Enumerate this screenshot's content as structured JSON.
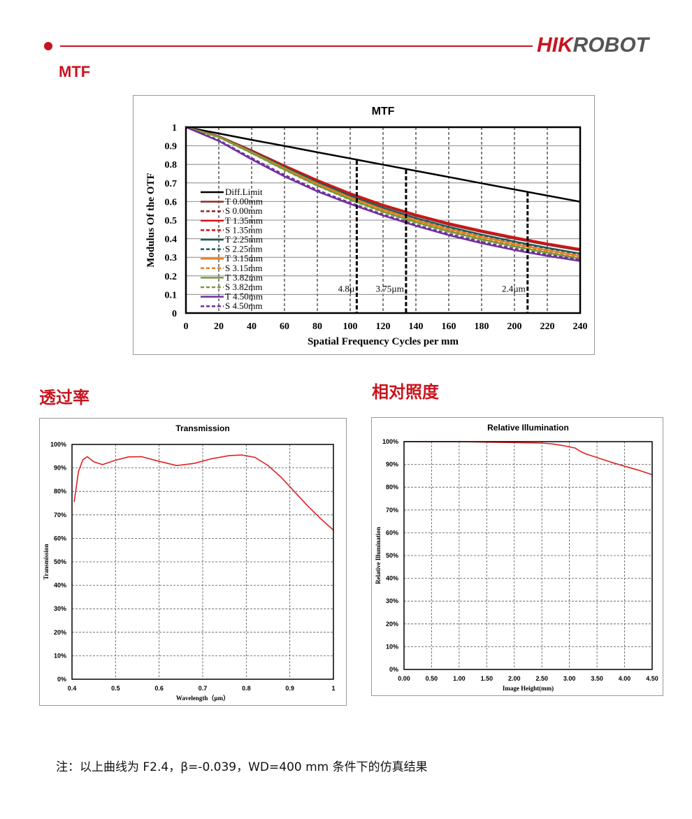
{
  "header": {
    "logo_part1": "HIK",
    "logo_part2": "ROBOT",
    "accent_color": "#c8141e"
  },
  "sections": {
    "mtf": "MTF",
    "transmission": "透过率",
    "illumination": "相对照度"
  },
  "footnote": "注：以上曲线为 F2.4，β=-0.039，WD=400 mm 条件下的仿真结果",
  "chart_data": [
    {
      "type": "line",
      "title": "MTF",
      "xlabel": "Spatial Frequency Cycles per mm",
      "ylabel": "Modulus Of  the OTF",
      "xlim": [
        0,
        240
      ],
      "ylim": [
        0,
        1
      ],
      "xticks": [
        "0",
        "20",
        "40",
        "60",
        "80",
        "100",
        "120",
        "140",
        "160",
        "180",
        "200",
        "220",
        "240"
      ],
      "yticks": [
        "0",
        "0.1",
        "0.2",
        "0.3",
        "0.4",
        "0.5",
        "0.6",
        "0.7",
        "0.8",
        "0.9",
        "1"
      ],
      "legend_position": "left",
      "grid": true,
      "x": [
        0,
        20,
        40,
        60,
        80,
        100,
        120,
        140,
        160,
        180,
        200,
        220,
        240
      ],
      "series": [
        {
          "name": "Diff.Limit",
          "color": "#000000",
          "dash": false,
          "values": [
            1,
            0.966,
            0.932,
            0.899,
            0.865,
            0.832,
            0.798,
            0.765,
            0.732,
            0.698,
            0.665,
            0.632,
            0.599
          ]
        },
        {
          "name": "T 0.00mm",
          "color": "#8b2b2b",
          "dash": false,
          "values": [
            1,
            0.951,
            0.873,
            0.79,
            0.711,
            0.64,
            0.577,
            0.522,
            0.476,
            0.436,
            0.4,
            0.367,
            0.337
          ]
        },
        {
          "name": "S 0.00mm",
          "color": "#8b2b2b",
          "dash": true,
          "values": [
            1,
            0.952,
            0.875,
            0.792,
            0.713,
            0.642,
            0.58,
            0.525,
            0.479,
            0.439,
            0.403,
            0.37,
            0.34
          ]
        },
        {
          "name": "T 1.35mm",
          "color": "#d41414",
          "dash": false,
          "values": [
            1,
            0.952,
            0.876,
            0.794,
            0.716,
            0.645,
            0.583,
            0.53,
            0.484,
            0.444,
            0.408,
            0.375,
            0.345
          ]
        },
        {
          "name": "S 1.35mm",
          "color": "#d41414",
          "dash": true,
          "values": [
            1,
            0.951,
            0.874,
            0.792,
            0.714,
            0.643,
            0.581,
            0.527,
            0.481,
            0.441,
            0.405,
            0.372,
            0.342
          ]
        },
        {
          "name": "T 2.25mm",
          "color": "#1f5b5b",
          "dash": false,
          "values": [
            1,
            0.95,
            0.871,
            0.786,
            0.704,
            0.631,
            0.567,
            0.511,
            0.464,
            0.422,
            0.385,
            0.351,
            0.32
          ]
        },
        {
          "name": "S 2.25mm",
          "color": "#1f5b5b",
          "dash": true,
          "values": [
            1,
            0.95,
            0.869,
            0.784,
            0.702,
            0.629,
            0.564,
            0.508,
            0.461,
            0.419,
            0.382,
            0.348,
            0.317
          ]
        },
        {
          "name": "T 3.15mm",
          "color": "#ee7d22",
          "dash": false,
          "values": [
            1,
            0.949,
            0.866,
            0.779,
            0.696,
            0.622,
            0.557,
            0.5,
            0.452,
            0.41,
            0.372,
            0.338,
            0.307
          ]
        },
        {
          "name": "S 3.15mm",
          "color": "#ee7d22",
          "dash": true,
          "values": [
            1,
            0.948,
            0.864,
            0.776,
            0.693,
            0.618,
            0.553,
            0.496,
            0.447,
            0.405,
            0.367,
            0.333,
            0.302
          ]
        },
        {
          "name": "T 3.82mm",
          "color": "#7a9a3a",
          "dash": false,
          "values": [
            1,
            0.947,
            0.862,
            0.772,
            0.687,
            0.612,
            0.546,
            0.489,
            0.44,
            0.397,
            0.359,
            0.325,
            0.294
          ]
        },
        {
          "name": "S 3.82mm",
          "color": "#7a9a3a",
          "dash": true,
          "values": [
            1,
            0.946,
            0.86,
            0.77,
            0.685,
            0.609,
            0.543,
            0.486,
            0.437,
            0.394,
            0.356,
            0.322,
            0.291
          ]
        },
        {
          "name": "T 4.50mm",
          "color": "#7030a0",
          "dash": false,
          "values": [
            1,
            0.926,
            0.827,
            0.735,
            0.655,
            0.587,
            0.525,
            0.469,
            0.419,
            0.376,
            0.339,
            0.307,
            0.28
          ]
        },
        {
          "name": "S 4.50mm",
          "color": "#7030a0",
          "dash": true,
          "values": [
            1,
            0.93,
            0.834,
            0.743,
            0.662,
            0.593,
            0.531,
            0.475,
            0.426,
            0.383,
            0.346,
            0.314,
            0.287
          ]
        }
      ],
      "annotations": [
        {
          "text": "4.8µ",
          "x": 104
        },
        {
          "text": "3.75µm",
          "x": 134
        },
        {
          "text": "2.4µm",
          "x": 208
        }
      ]
    },
    {
      "type": "line",
      "title": "Transmission",
      "xlabel": "Wavelength（µm）",
      "ylabel": "Transmission",
      "xlim": [
        0.4,
        1
      ],
      "ylim": [
        0,
        100
      ],
      "xticks": [
        "0.4",
        "0.5",
        "0.6",
        "0.7",
        "0.8",
        "0.9",
        "1"
      ],
      "yticks": [
        "0%",
        "10%",
        "20%",
        "30%",
        "40%",
        "50%",
        "60%",
        "70%",
        "80%",
        "90%",
        "100%"
      ],
      "grid": true,
      "x": [
        0.405,
        0.415,
        0.425,
        0.435,
        0.45,
        0.47,
        0.5,
        0.53,
        0.56,
        0.6,
        0.64,
        0.68,
        0.72,
        0.76,
        0.79,
        0.82,
        0.85,
        0.88,
        0.91,
        0.94,
        0.97,
        1.0
      ],
      "series": [
        {
          "name": "Transmission",
          "color": "#e02020",
          "values": [
            75.5,
            88.5,
            93.5,
            94.8,
            92.6,
            91.4,
            93.3,
            94.7,
            94.8,
            92.8,
            91.0,
            91.9,
            93.9,
            95.2,
            95.5,
            94.5,
            91.0,
            86.0,
            80.0,
            74.0,
            68.5,
            63.5
          ]
        }
      ]
    },
    {
      "type": "line",
      "title": "Relative Illumination",
      "xlabel": "Image Height(mm)",
      "ylabel": "Relative Illumination",
      "xlim": [
        0,
        4.5
      ],
      "ylim": [
        0,
        100
      ],
      "xticks": [
        "0.00",
        "0.50",
        "1.00",
        "1.50",
        "2.00",
        "2.50",
        "3.00",
        "3.50",
        "4.00",
        "4.50"
      ],
      "yticks": [
        "0%",
        "10%",
        "20%",
        "30%",
        "40%",
        "50%",
        "60%",
        "70%",
        "80%",
        "90%",
        "100%"
      ],
      "grid": true,
      "x": [
        0,
        0.5,
        1.0,
        1.5,
        2.0,
        2.5,
        2.7,
        2.9,
        3.1,
        3.2,
        3.3,
        3.5,
        3.75,
        4.0,
        4.25,
        4.5
      ],
      "series": [
        {
          "name": "Relative Illumination",
          "color": "#e02020",
          "values": [
            100,
            100,
            100,
            99.8,
            99.6,
            99.4,
            99.0,
            98.2,
            97.2,
            95.7,
            94.6,
            93.0,
            91.0,
            89.2,
            87.5,
            85.5
          ]
        }
      ]
    }
  ]
}
